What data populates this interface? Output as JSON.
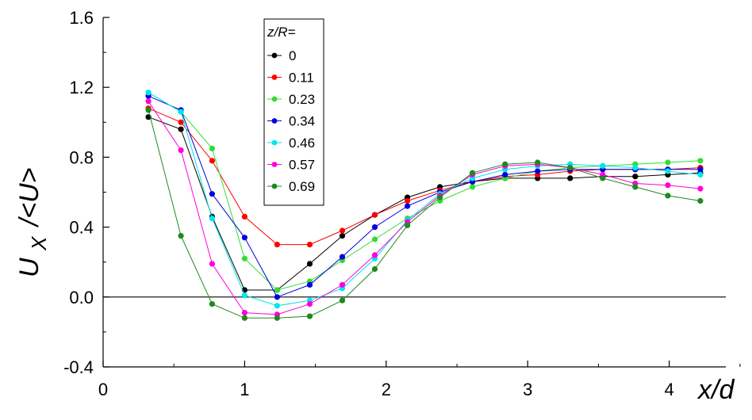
{
  "chart_data": {
    "type": "line",
    "xlabel": "x/d",
    "ylabel": "U",
    "ylabel_sub": "X",
    "ylabel_rest": "/<U>",
    "xlim": [
      0,
      4.4
    ],
    "ylim": [
      -0.4,
      1.6
    ],
    "xticks": [
      "0",
      "1",
      "2",
      "3",
      "4"
    ],
    "xtick_values": [
      0,
      1,
      2,
      3,
      4
    ],
    "yticks": [
      "-0.4",
      "0.0",
      "0.4",
      "0.8",
      "1.2",
      "1.6"
    ],
    "ytick_values": [
      -0.4,
      0.0,
      0.4,
      0.8,
      1.2,
      1.6
    ],
    "zero_line": true,
    "grid": false,
    "legend": {
      "title": "z/R=",
      "placement": "top-center"
    },
    "x": [
      0.32,
      0.55,
      0.77,
      1.0,
      1.23,
      1.46,
      1.69,
      1.92,
      2.15,
      2.38,
      2.61,
      2.84,
      3.07,
      3.3,
      3.53,
      3.76,
      3.99,
      4.22
    ],
    "series": [
      {
        "name": "0",
        "color": "#000000",
        "values": [
          1.03,
          0.96,
          0.46,
          0.04,
          0.04,
          0.19,
          0.35,
          0.47,
          0.57,
          0.63,
          0.66,
          0.68,
          0.68,
          0.68,
          0.69,
          0.69,
          0.7,
          0.71
        ]
      },
      {
        "name": "0.11",
        "color": "#ff0000",
        "values": [
          1.08,
          1.0,
          0.78,
          0.46,
          0.3,
          0.3,
          0.38,
          0.47,
          0.55,
          0.61,
          0.66,
          0.69,
          0.7,
          0.72,
          0.73,
          0.73,
          0.73,
          0.74
        ]
      },
      {
        "name": "0.23",
        "color": "#33dd33",
        "values": [
          1.17,
          1.06,
          0.85,
          0.22,
          0.04,
          0.09,
          0.21,
          0.33,
          0.45,
          0.55,
          0.63,
          0.68,
          0.72,
          0.74,
          0.75,
          0.76,
          0.77,
          0.78
        ]
      },
      {
        "name": "0.34",
        "color": "#0000dd",
        "values": [
          1.15,
          1.07,
          0.59,
          0.34,
          0.0,
          0.07,
          0.23,
          0.4,
          0.52,
          0.6,
          0.66,
          0.7,
          0.72,
          0.73,
          0.73,
          0.73,
          0.73,
          0.73
        ]
      },
      {
        "name": "0.46",
        "color": "#00e5ee",
        "values": [
          1.17,
          1.06,
          0.45,
          0.01,
          -0.05,
          -0.02,
          0.05,
          0.22,
          0.44,
          0.59,
          0.68,
          0.73,
          0.75,
          0.76,
          0.75,
          0.74,
          0.72,
          0.7
        ]
      },
      {
        "name": "0.57",
        "color": "#ff00dd",
        "values": [
          1.12,
          0.84,
          0.19,
          -0.09,
          -0.1,
          -0.04,
          0.07,
          0.24,
          0.43,
          0.58,
          0.7,
          0.75,
          0.76,
          0.74,
          0.7,
          0.65,
          0.64,
          0.62
        ]
      },
      {
        "name": "0.69",
        "color": "#1e8a1e",
        "values": [
          1.07,
          0.35,
          -0.04,
          -0.12,
          -0.12,
          -0.11,
          -0.02,
          0.16,
          0.41,
          0.57,
          0.71,
          0.76,
          0.77,
          0.74,
          0.68,
          0.63,
          0.58,
          0.55
        ]
      }
    ]
  }
}
